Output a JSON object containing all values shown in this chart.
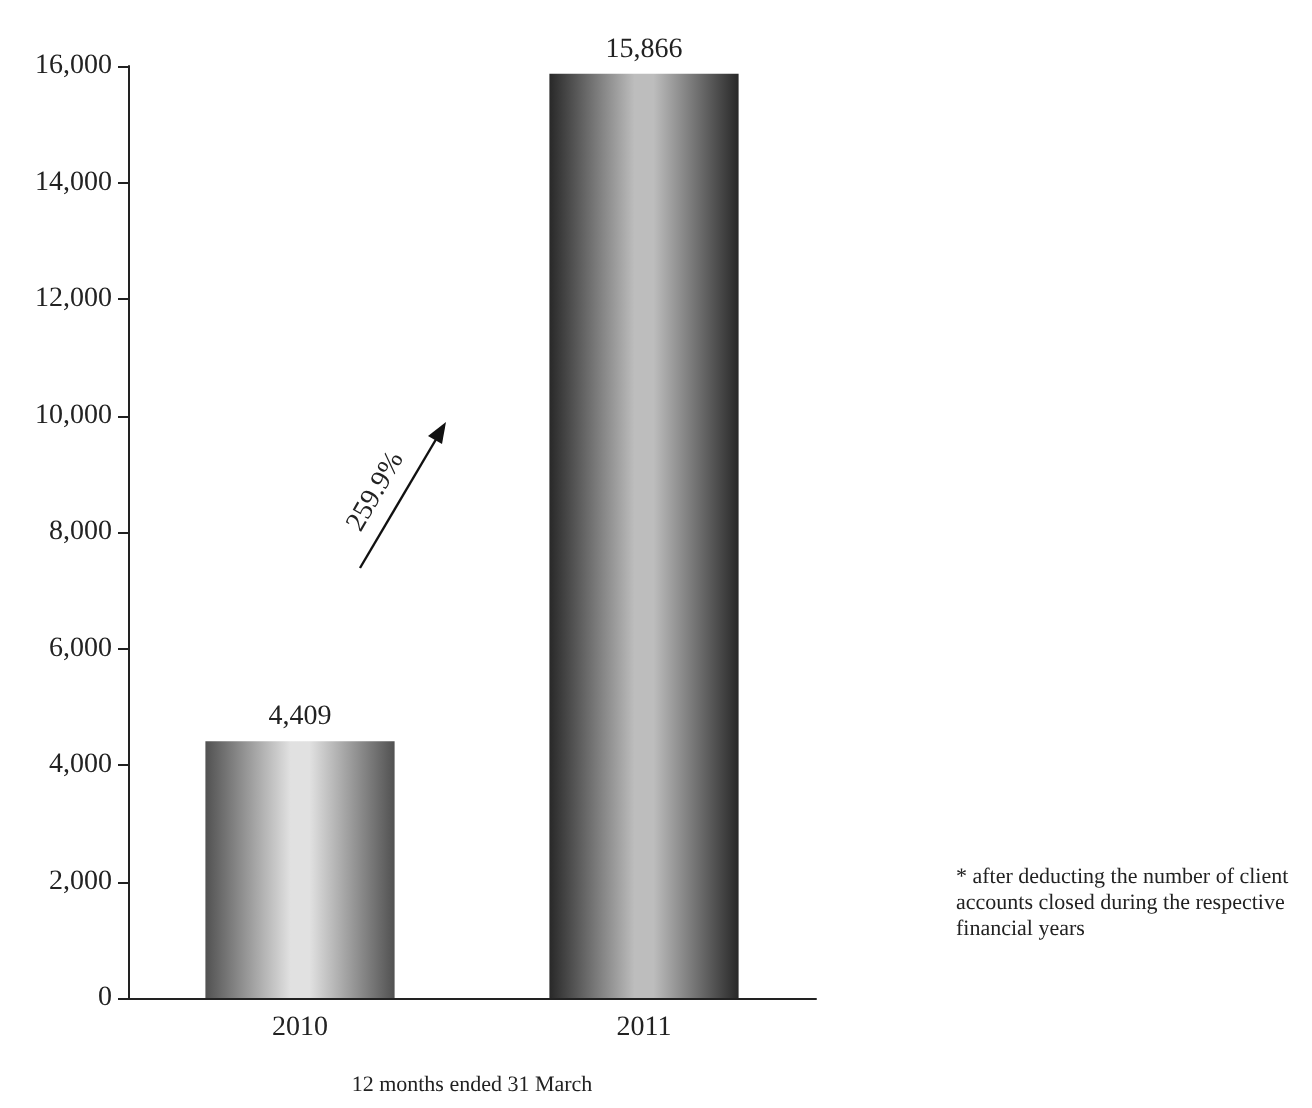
{
  "chart_data": {
    "type": "bar",
    "xlabel": "12 months ended 31 March",
    "categories": [
      "2010",
      "2011"
    ],
    "values": [
      4409,
      15866
    ],
    "colors": [
      "#b4b4b4",
      "#5a5a5a"
    ],
    "value_labels": [
      "4,409",
      "15,866"
    ],
    "ylim": [
      0,
      16000
    ],
    "yticks": [
      0,
      {
        "value": 2000,
        "label": "2,000"
      },
      {
        "value": 4000,
        "label": "4,000"
      },
      {
        "value": 6000,
        "label": "6,000"
      },
      {
        "value": 8000,
        "label": "8,000"
      },
      {
        "value": 10000,
        "label": "10,000"
      },
      {
        "value": 12000,
        "label": "12,000"
      },
      {
        "value": 14000,
        "label": "14,000"
      },
      {
        "value": 16000,
        "label": "16,000"
      }
    ],
    "grid": false,
    "annotations": [
      "259.9%",
      "* after deducting the number of client accounts closed during the respective financial years"
    ]
  }
}
